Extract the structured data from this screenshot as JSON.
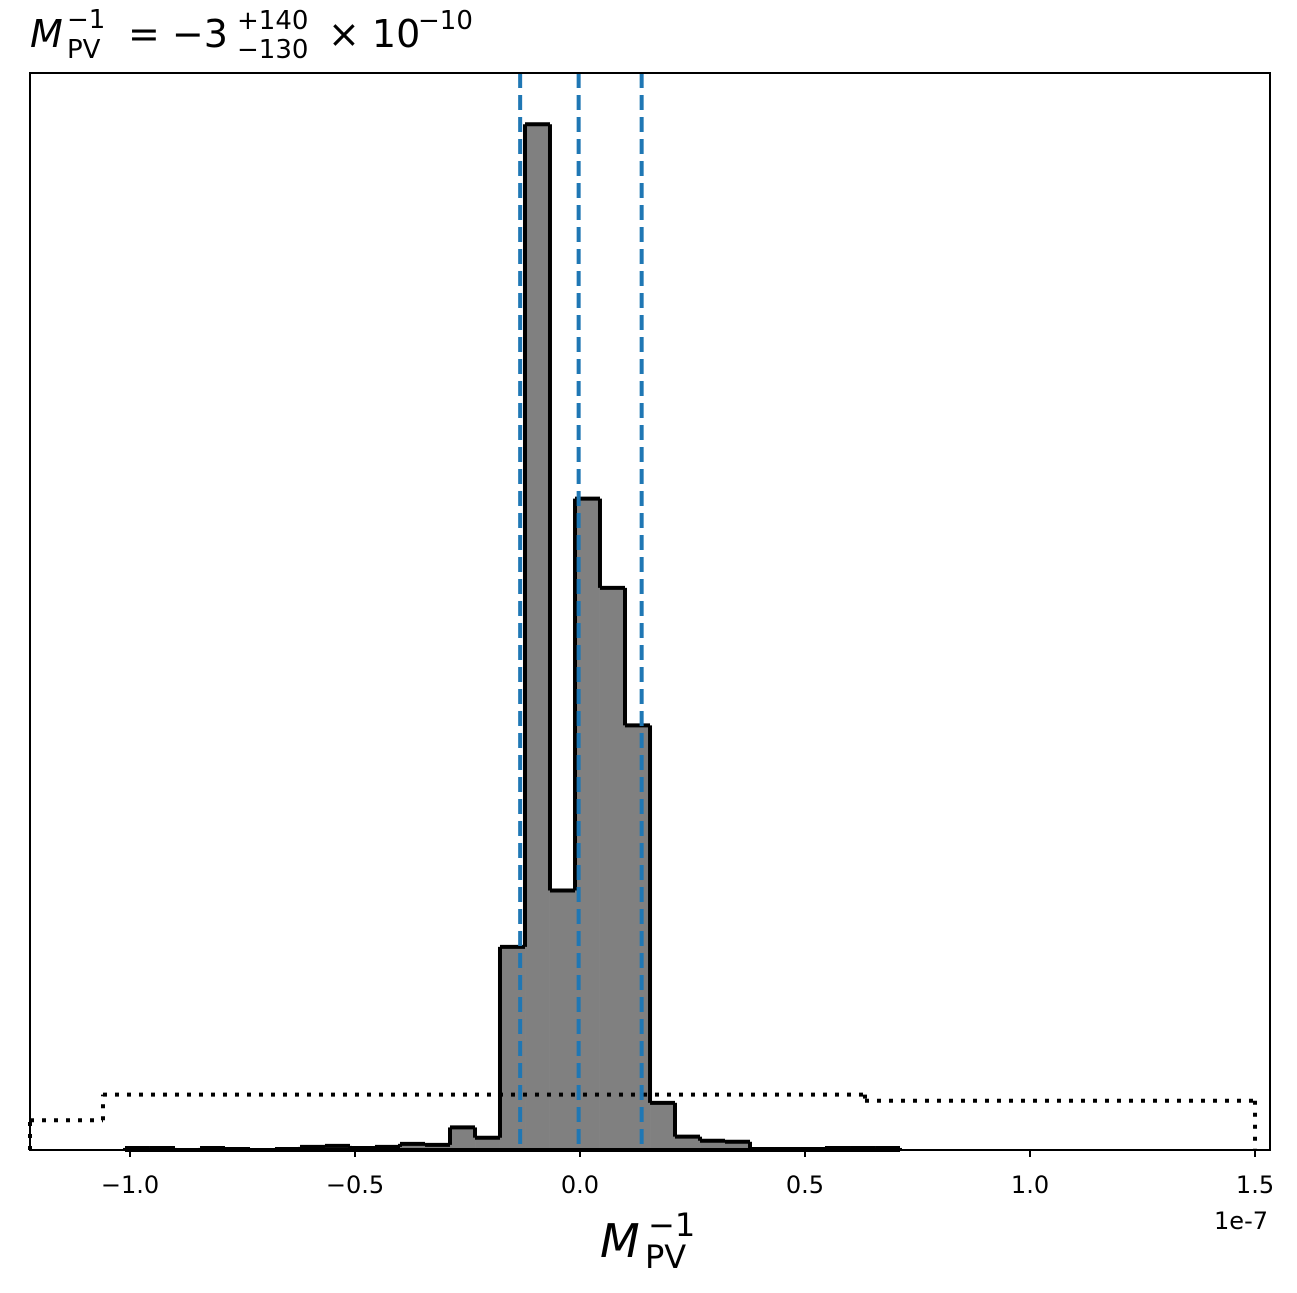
{
  "chart_data": {
    "type": "histogram",
    "title": {
      "symbol": "M",
      "symbol_sub": "PV",
      "symbol_sup": "−1",
      "equals": "= −3",
      "upper": "+140",
      "lower": "−130",
      "times": "× 10",
      "exponent": "−10"
    },
    "xlabel": {
      "symbol": "M",
      "symbol_sub": "PV",
      "symbol_sup": "−1"
    },
    "x_offset": "1e-7",
    "xlim": [
      -1.2222,
      1.5333
    ],
    "ylim": [
      0,
      1.05
    ],
    "xticks": [
      {
        "value": -1,
        "label": "−1.0"
      },
      {
        "value": -0.5,
        "label": "−0.5"
      },
      {
        "value": 0,
        "label": "0.0"
      },
      0.5,
      {
        "value": 1,
        "label": "1.0"
      },
      1.5
    ],
    "bins": [
      -1.0111,
      -0.9556,
      -0.9,
      -0.8444,
      -0.7889,
      -0.7333,
      -0.6778,
      -0.6222,
      -0.5667,
      -0.5111,
      -0.4556,
      -0.4,
      -0.3444,
      -0.2889,
      -0.2333,
      -0.1778,
      -0.1222,
      -0.0667,
      -0.0111,
      0.0444,
      0.1,
      0.1556,
      0.2111,
      0.2667,
      0.3222,
      0.3778,
      0.4333,
      0.4889,
      0.5444,
      0.6,
      0.6556,
      0.7111
    ],
    "values": [
      0.002,
      0.002,
      0,
      0.002,
      0.001,
      0,
      0.001,
      0.003,
      0.004,
      0.002,
      0.003,
      0.006,
      0.005,
      0.022,
      0.012,
      0.198,
      1.0,
      0.253,
      0.635,
      0.548,
      0.414,
      0.046,
      0.013,
      0.009,
      0.008,
      0.001,
      0.001,
      0.001,
      0.002,
      0.002,
      0.002
    ],
    "color": "#808080",
    "edgecolor": "#000000",
    "prior": {
      "bins": [
        -1.2222,
        -1.06,
        0.6333,
        1.5
      ],
      "values": [
        0.029,
        0.054,
        0.048
      ],
      "linestyle": "dotted",
      "color": "#000000"
    },
    "quantiles": {
      "values": [
        -0.133,
        -0.003,
        0.137
      ],
      "color": "#1f77b4",
      "linestyle": "dashed"
    }
  }
}
